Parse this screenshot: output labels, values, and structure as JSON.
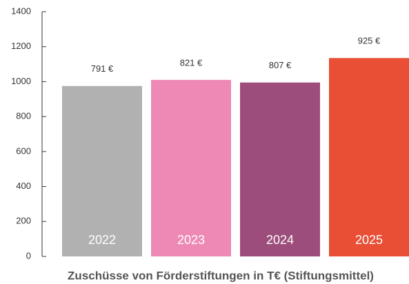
{
  "chart_data": {
    "type": "bar",
    "title": "Zuschüsse von Förderstiftungen in T€ (Stiftungsmittel)",
    "categories": [
      "2022",
      "2023",
      "2024",
      "2025"
    ],
    "values": [
      975,
      1010,
      995,
      1135
    ],
    "annotations": [
      "791 €",
      "821 €",
      "807 €",
      "925 €"
    ],
    "colors": [
      "#b1b1b1",
      "#ee89b5",
      "#9c4d7b",
      "#e84f35"
    ],
    "ylim": [
      0,
      1400
    ],
    "yticks": [
      0,
      200,
      400,
      600,
      800,
      1000,
      1200,
      1400
    ],
    "grid": false
  }
}
